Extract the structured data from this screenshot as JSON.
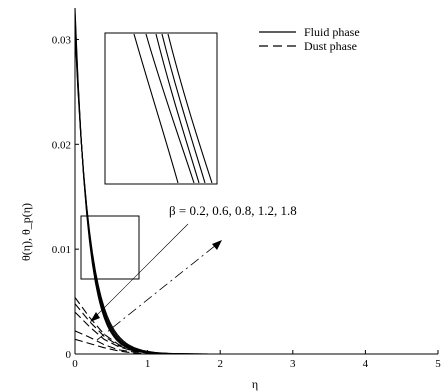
{
  "chart_data": {
    "type": "line",
    "title": "",
    "xlabel": "η",
    "ylabel": "θ(η), θ_p(η)",
    "xlim": [
      0,
      5
    ],
    "ylim": [
      0,
      0.033
    ],
    "x_ticks": [
      0,
      1,
      2,
      3,
      4,
      5
    ],
    "x_tick_labels": [
      "0",
      "1",
      "2",
      "3",
      "4",
      "5"
    ],
    "y_ticks": [
      0,
      0.01,
      0.02,
      0.03
    ],
    "y_tick_labels": [
      "0",
      "0.01",
      "0.02",
      "0.03"
    ],
    "grid": false,
    "legend": {
      "placement": "top-right",
      "entries": [
        {
          "label": "Fluid phase",
          "style": "solid"
        },
        {
          "label": "Dust phase",
          "style": "dashed"
        }
      ]
    },
    "annotation": {
      "text": "β = 0.2, 0.6, 0.8, 1.2, 1.8",
      "beta_values": [
        0.2,
        0.6,
        0.8,
        1.2,
        1.8
      ]
    },
    "zoom_box": {
      "x_range": [
        0.05,
        0.45
      ],
      "y_range": [
        0.007,
        0.013
      ]
    },
    "series": [
      {
        "style": "solid",
        "beta": 0.2,
        "theta0": 0.033,
        "decay": 5.6
      },
      {
        "style": "solid",
        "beta": 0.6,
        "theta0": 0.0324,
        "decay": 5.4
      },
      {
        "style": "solid",
        "beta": 0.8,
        "theta0": 0.0318,
        "decay": 5.2
      },
      {
        "style": "solid",
        "beta": 1.2,
        "theta0": 0.0312,
        "decay": 5.0
      },
      {
        "style": "solid",
        "beta": 1.8,
        "theta0": 0.0306,
        "decay": 4.8
      },
      {
        "style": "dashed",
        "beta": 0.2,
        "points": [
          [
            0,
            0.004
          ],
          [
            0.2,
            0.0026
          ],
          [
            0.4,
            0.0014
          ],
          [
            0.6,
            0.0007
          ],
          [
            0.8,
            0.0003
          ],
          [
            1.0,
            0.0001
          ],
          [
            1.4,
            0.0
          ]
        ]
      },
      {
        "style": "dashed",
        "beta": 0.6,
        "points": [
          [
            0,
            0.0048
          ],
          [
            0.2,
            0.0031
          ],
          [
            0.4,
            0.0017
          ],
          [
            0.6,
            0.0008
          ],
          [
            0.8,
            0.0003
          ],
          [
            1.0,
            0.0001
          ],
          [
            1.4,
            0.0
          ]
        ]
      },
      {
        "style": "dashed",
        "beta": 0.8,
        "points": [
          [
            0,
            0.0054
          ],
          [
            0.2,
            0.0035
          ],
          [
            0.4,
            0.0019
          ],
          [
            0.6,
            0.0009
          ],
          [
            0.8,
            0.0004
          ],
          [
            1.0,
            0.0001
          ],
          [
            1.4,
            0.0
          ]
        ]
      },
      {
        "style": "dashed",
        "beta": 1.2,
        "points": [
          [
            0,
            0.0022
          ],
          [
            0.2,
            0.0016
          ],
          [
            0.4,
            0.0009
          ],
          [
            0.6,
            0.0004
          ],
          [
            0.8,
            0.0002
          ],
          [
            1.0,
            0.0001
          ],
          [
            1.4,
            0.0
          ]
        ]
      },
      {
        "style": "dashed",
        "beta": 1.8,
        "points": [
          [
            0,
            0.0014
          ],
          [
            0.2,
            0.001
          ],
          [
            0.4,
            0.0006
          ],
          [
            0.6,
            0.0003
          ],
          [
            0.8,
            0.0001
          ],
          [
            1.0,
            0.0
          ],
          [
            1.4,
            0.0
          ]
        ]
      }
    ]
  }
}
